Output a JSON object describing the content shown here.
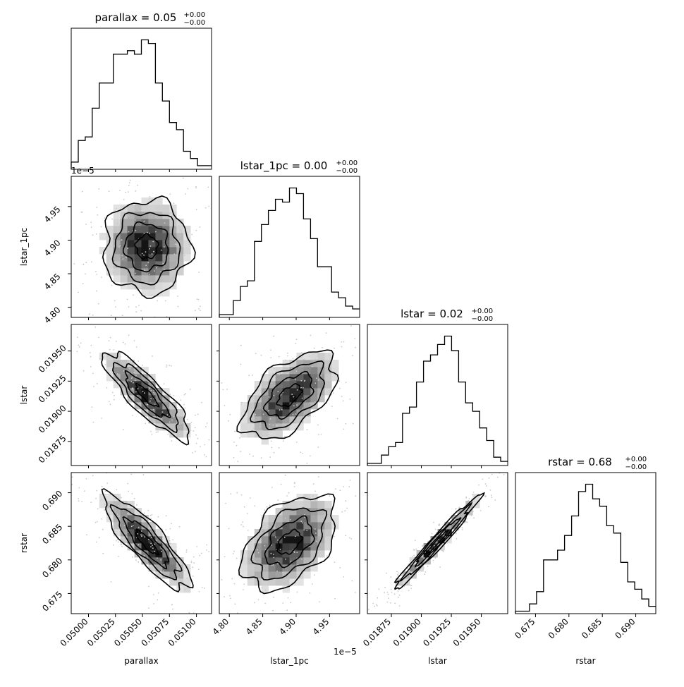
{
  "chart_data": {
    "type": "corner",
    "parameters": [
      "parallax",
      "lstar_1pc",
      "lstar",
      "rstar"
    ],
    "titles": [
      {
        "param": "parallax",
        "value": "0.05",
        "plus": "+0.00",
        "minus": "−0.00"
      },
      {
        "param": "lstar_1pc",
        "value": "0.00",
        "plus": "+0.00",
        "minus": "−0.00"
      },
      {
        "param": "lstar",
        "value": "0.02",
        "plus": "+0.00",
        "minus": "−0.00"
      },
      {
        "param": "rstar",
        "value": "0.68",
        "plus": "+0.00",
        "minus": "−0.00"
      }
    ],
    "axes": {
      "parallax": {
        "range": [
          0.04984,
          0.05114
        ],
        "ticks": [
          0.05,
          0.05025,
          0.0505,
          0.05075,
          0.051
        ],
        "tick_labels": [
          "0.05000",
          "0.05025",
          "0.05050",
          "0.05075",
          "0.05100"
        ]
      },
      "lstar_1pc": {
        "range": [
          4.785,
          4.995
        ],
        "ticks": [
          4.8,
          4.85,
          4.9,
          4.95
        ],
        "tick_labels": [
          "4.80",
          "4.85",
          "4.90",
          "4.95"
        ],
        "offset_text": "1e−5"
      },
      "lstar": {
        "range": [
          0.01855,
          0.01972
        ],
        "ticks": [
          0.01875,
          0.019,
          0.01925,
          0.0195
        ],
        "tick_labels": [
          "0.01875",
          "0.01900",
          "0.01925",
          "0.01950"
        ]
      },
      "rstar": {
        "range": [
          0.672,
          0.693
        ],
        "ticks": [
          0.675,
          0.68,
          0.685,
          0.69
        ],
        "tick_labels": [
          "0.675",
          "0.680",
          "0.685",
          "0.690"
        ]
      }
    },
    "histograms": {
      "parallax": [
        2,
        8,
        9,
        17,
        24,
        24,
        32,
        32,
        33,
        32,
        36,
        35,
        24,
        19,
        13,
        11,
        5,
        3,
        1,
        1
      ],
      "lstar_1pc": [
        1,
        1,
        6,
        11,
        13,
        27,
        33,
        38,
        42,
        41,
        46,
        44,
        35,
        28,
        18,
        18,
        9,
        7,
        4,
        3
      ],
      "lstar": [
        1,
        1,
        5,
        9,
        11,
        25,
        28,
        40,
        50,
        53,
        58,
        62,
        55,
        40,
        30,
        26,
        18,
        12,
        4,
        2
      ],
      "rstar": [
        1,
        1,
        4,
        9,
        22,
        22,
        26,
        32,
        40,
        50,
        53,
        47,
        44,
        36,
        33,
        21,
        13,
        10,
        6,
        3
      ]
    },
    "correlations": {
      "lstar_1pc|parallax": 0.0,
      "lstar|parallax": -0.85,
      "lstar|lstar_1pc": 0.55,
      "rstar|parallax": -0.85,
      "rstar|lstar_1pc": 0.45,
      "rstar|lstar": 0.98
    },
    "centers": {
      "parallax": 0.05054,
      "lstar_1pc": 4.89,
      "lstar": 0.01913,
      "rstar": 0.6826
    },
    "spreads": {
      "parallax": 0.0002,
      "lstar_1pc": 0.035,
      "lstar": 0.00018,
      "rstar": 0.0035
    },
    "contour_levels_sigma": [
      0.5,
      1.0,
      1.5,
      2.0
    ]
  }
}
